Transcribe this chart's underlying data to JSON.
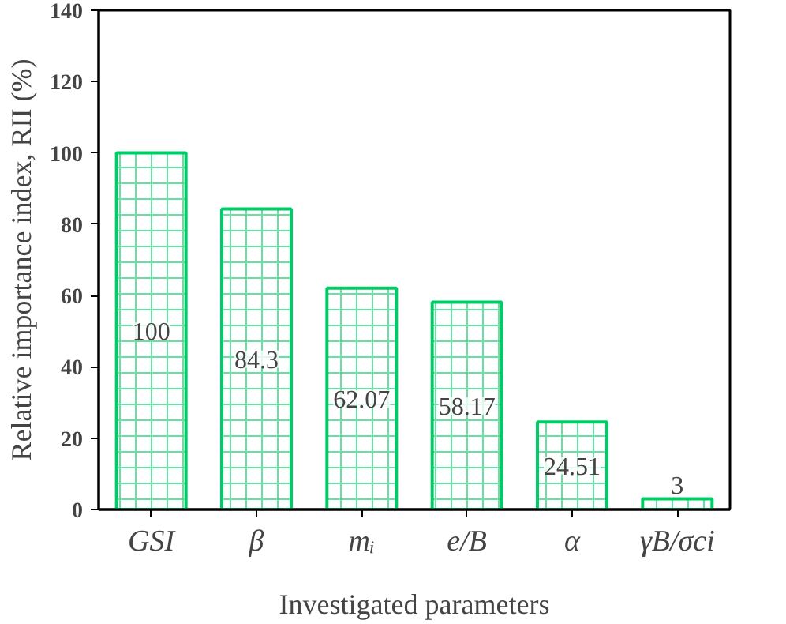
{
  "chart_data": {
    "type": "bar",
    "xlabel": "Investigated parameters",
    "ylabel": "Relative importance index, RII (%)",
    "categories": [
      "GSI",
      "β",
      "mᵢ",
      "e/B",
      "α",
      "γB/σci"
    ],
    "values": [
      100,
      84.3,
      62.07,
      58.17,
      24.51,
      3
    ],
    "color": "#00cc66",
    "data_labels": true,
    "ylim": [
      0,
      140
    ],
    "yticks": [
      0,
      20,
      40,
      60,
      80,
      100,
      120,
      140
    ]
  }
}
